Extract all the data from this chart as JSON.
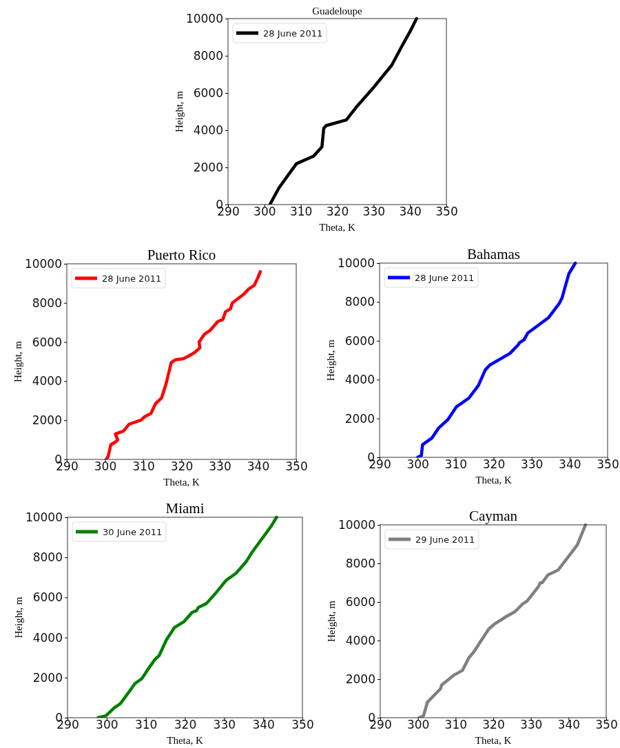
{
  "chart_data": [
    {
      "type": "line",
      "title": "Guadeloupe",
      "xlabel": "Theta, K",
      "ylabel": "Height, m",
      "xlim": [
        290,
        350
      ],
      "ylim": [
        0,
        10000
      ],
      "xticks": [
        290,
        300,
        310,
        320,
        330,
        340,
        350
      ],
      "yticks": [
        0,
        2000,
        4000,
        6000,
        8000,
        10000
      ],
      "legend": "top left",
      "series": [
        {
          "name": "28 June 2011",
          "color": "#000000",
          "x": [
            301.5,
            304,
            308.8,
            313.5,
            315.8,
            316.3,
            317,
            322.5,
            325.5,
            330,
            335,
            338,
            340,
            341.8
          ],
          "values": [
            0,
            900,
            2200,
            2600,
            3100,
            4100,
            4250,
            4550,
            5300,
            6300,
            7500,
            8600,
            9300,
            10000
          ]
        }
      ]
    },
    {
      "type": "line",
      "title": "Puerto Rico",
      "xlabel": "Theta, K",
      "ylabel": "Height, m",
      "xlim": [
        290,
        350
      ],
      "ylim": [
        0,
        10000
      ],
      "xticks": [
        290,
        300,
        310,
        320,
        330,
        340,
        350
      ],
      "yticks": [
        0,
        2000,
        4000,
        6000,
        8000,
        10000
      ],
      "legend": "top left",
      "series": [
        {
          "name": "28 June 2011",
          "color": "#ff0000",
          "x": [
            300.3,
            300.8,
            301.5,
            302.8,
            303.3,
            302.7,
            304.8,
            306.3,
            309.3,
            310.5,
            312,
            313.2,
            314.8,
            316,
            317.3,
            318.5,
            320.5,
            322,
            323.3,
            324.8,
            324.6,
            326,
            327.5,
            329.5,
            330.8,
            331.5,
            332.8,
            333.3,
            336.3,
            337.5,
            339,
            340,
            340.6
          ],
          "values": [
            0,
            150,
            750,
            900,
            1000,
            1300,
            1450,
            1800,
            2000,
            2200,
            2350,
            2850,
            3150,
            3900,
            4950,
            5100,
            5150,
            5300,
            5450,
            5700,
            6000,
            6400,
            6600,
            7050,
            7150,
            7550,
            7700,
            8000,
            8450,
            8700,
            8900,
            9300,
            9600
          ]
        }
      ]
    },
    {
      "type": "line",
      "title": "Bahamas",
      "xlabel": "Theta, K",
      "ylabel": "Height, m",
      "xlim": [
        290,
        350
      ],
      "ylim": [
        0,
        10000
      ],
      "xticks": [
        290,
        300,
        310,
        320,
        330,
        340,
        350
      ],
      "yticks": [
        0,
        2000,
        4000,
        6000,
        8000,
        10000
      ],
      "legend": "top left",
      "series": [
        {
          "name": "28 June 2011",
          "color": "#0000ff",
          "x": [
            300,
            301,
            301.3,
            303.8,
            305.5,
            308,
            310.2,
            313.5,
            316,
            317.8,
            319,
            324.3,
            326.5,
            326.8,
            328,
            329,
            334.5,
            337.2,
            338,
            339.8,
            341.5
          ],
          "values": [
            0,
            100,
            650,
            1000,
            1500,
            1950,
            2600,
            3050,
            3700,
            4500,
            4750,
            5350,
            5800,
            5900,
            6050,
            6400,
            7200,
            7900,
            8200,
            9450,
            10000
          ]
        }
      ]
    },
    {
      "type": "line",
      "title": "Miami",
      "xlabel": "Theta, K",
      "ylabel": "Height, m",
      "xlim": [
        290,
        350
      ],
      "ylim": [
        0,
        10000
      ],
      "xticks": [
        290,
        300,
        310,
        320,
        330,
        340,
        350
      ],
      "yticks": [
        0,
        2000,
        4000,
        6000,
        8000,
        10000
      ],
      "legend": "top left",
      "series": [
        {
          "name": "30 June 2011",
          "color": "#008000",
          "x": [
            297.8,
            299.8,
            302,
            303.5,
            305,
            306.5,
            307.2,
            309,
            310.5,
            312.3,
            313.4,
            314,
            315.3,
            316.5,
            317.3,
            319.8,
            321.8,
            323,
            323.4,
            325.5,
            328,
            330.5,
            333,
            335.5,
            337.3,
            342,
            343.4
          ],
          "values": [
            0,
            100,
            500,
            700,
            1100,
            1500,
            1700,
            1950,
            2400,
            2900,
            3100,
            3350,
            3900,
            4250,
            4500,
            4800,
            5250,
            5350,
            5500,
            5700,
            6250,
            6850,
            7200,
            7750,
            8300,
            9550,
            10000
          ]
        }
      ]
    },
    {
      "type": "line",
      "title": "Cayman",
      "xlabel": "Theta, K",
      "ylabel": "Height, m",
      "xlim": [
        290,
        350
      ],
      "ylim": [
        0,
        10000
      ],
      "xticks": [
        290,
        300,
        310,
        320,
        330,
        340,
        350
      ],
      "yticks": [
        0,
        2000,
        4000,
        6000,
        8000,
        10000
      ],
      "legend": "top left",
      "series": [
        {
          "name": "29 June 2011",
          "color": "#808080",
          "x": [
            300.3,
            301.5,
            302.5,
            306,
            306.3,
            309.5,
            311.8,
            313.5,
            314.8,
            318.8,
            320.3,
            323.5,
            325.8,
            327.8,
            329,
            332,
            332.5,
            333,
            334.5,
            337.2,
            342.3,
            344.5
          ],
          "values": [
            0,
            100,
            800,
            1500,
            1700,
            2200,
            2450,
            3100,
            3400,
            4600,
            4850,
            5250,
            5500,
            5900,
            6050,
            6800,
            7000,
            7000,
            7400,
            7650,
            8950,
            10000
          ]
        }
      ]
    }
  ]
}
